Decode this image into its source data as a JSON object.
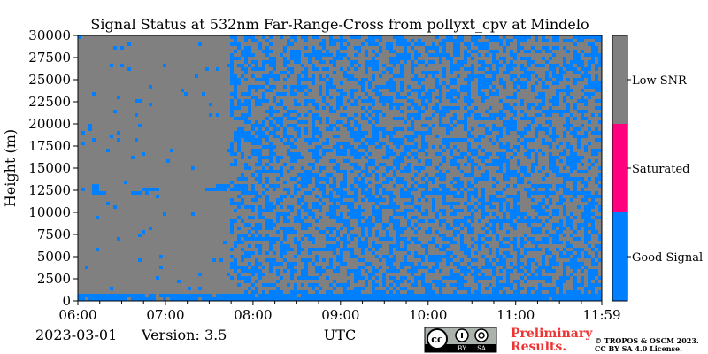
{
  "chart_data": {
    "type": "heatmap",
    "title": "Signal Status at 532nm Far-Range-Cross from pollyxt_cpv at Mindelo",
    "xlabel": "UTC",
    "ylabel": "Height (m)",
    "x_ticks": [
      "06:00",
      "07:00",
      "08:00",
      "09:00",
      "10:00",
      "11:00",
      "11:59"
    ],
    "x_range": [
      "06:00",
      "11:59"
    ],
    "y_ticks": [
      0,
      2500,
      5000,
      7500,
      10000,
      12500,
      15000,
      17500,
      20000,
      22500,
      25000,
      27500,
      30000
    ],
    "y_range": [
      0,
      30000
    ],
    "categories": [
      {
        "label": "Good Signal",
        "color": "#0080ff"
      },
      {
        "label": "Saturated",
        "color": "#ff007f"
      },
      {
        "label": "Low SNR",
        "color": "#808080"
      }
    ],
    "regions": [
      {
        "time_start": "06:00",
        "time_end": "07:45",
        "height_start": 0,
        "height_end": 30000,
        "dominant": "Low SNR",
        "good_signal_fraction": 0.02
      },
      {
        "time_start": "07:45",
        "time_end": "11:59",
        "height_start": 0,
        "height_end": 30000,
        "dominant": "Low SNR",
        "good_signal_fraction": 0.45
      },
      {
        "time_start": "06:00",
        "time_end": "11:59",
        "height_start": 0,
        "height_end": 800,
        "dominant": "Good Signal",
        "good_signal_fraction": 0.95
      },
      {
        "time_start": "06:10",
        "time_end": "06:20",
        "height_start": 12000,
        "height_end": 13200,
        "dominant": "Good Signal",
        "good_signal_fraction": 0.6
      },
      {
        "time_start": "06:35",
        "time_end": "06:55",
        "height_start": 12000,
        "height_end": 12600,
        "dominant": "Good Signal",
        "good_signal_fraction": 0.6
      },
      {
        "time_start": "07:30",
        "time_end": "07:55",
        "height_start": 12600,
        "height_end": 13000,
        "dominant": "Good Signal",
        "good_signal_fraction": 0.6
      }
    ]
  },
  "footer": {
    "date": "2023-03-01",
    "version": "Version: 3.5",
    "preliminary_line1": "Preliminary",
    "preliminary_line2": "Results.",
    "copyright_line1": "© TROPOS & OSCM 2023.",
    "copyright_line2": "CC BY SA 4.0 License.",
    "license_badge": {
      "cc": "cc",
      "by": "BY",
      "sa": "SA"
    }
  },
  "colors": {
    "good": "#0080ff",
    "saturated": "#ff007f",
    "low": "#808080",
    "preliminary": "#ee3333"
  }
}
